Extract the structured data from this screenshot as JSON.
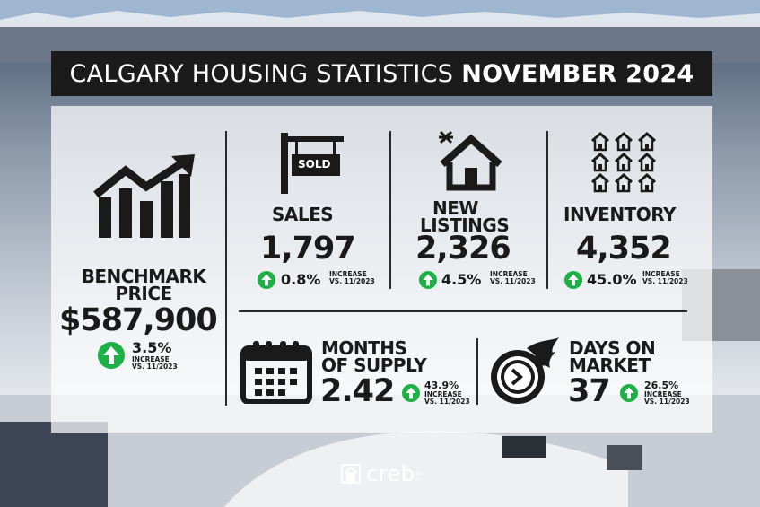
{
  "title": {
    "light": "CALGARY HOUSING STATISTICS",
    "bold": "NOVEMBER 2024"
  },
  "benchmark": {
    "heading_line1": "BENCHMARK",
    "heading_line2": "PRICE",
    "value": "$587,900",
    "change": "3.5%",
    "change_label": "INCREASE",
    "period": "VS. 11/2023"
  },
  "sales": {
    "sign_text": "SOLD",
    "heading": "SALES",
    "value": "1,797",
    "change": "0.8%",
    "change_label": "INCREASE",
    "period": "VS. 11/2023"
  },
  "new_listings": {
    "heading_line1": "NEW",
    "heading_line2": "LISTINGS",
    "value": "2,326",
    "change": "4.5%",
    "change_label": "INCREASE",
    "period": "VS. 11/2023"
  },
  "inventory": {
    "heading": "INVENTORY",
    "value": "4,352",
    "change": "45.0%",
    "change_label": "INCREASE",
    "period": "VS. 11/2023"
  },
  "months_supply": {
    "heading_line1": "MONTHS",
    "heading_line2": "OF SUPPLY",
    "value": "2.42",
    "change": "43.9%",
    "change_label": "INCREASE",
    "period": "VS. 11/2023"
  },
  "days_on_market": {
    "heading_line1": "DAYS ON",
    "heading_line2": "MARKET",
    "value": "37",
    "change": "26.5%",
    "change_label": "INCREASE",
    "period": "VS. 11/2023"
  },
  "footer": {
    "brand": "creb",
    "mark": "®"
  },
  "colors": {
    "accent_green": "#1db046",
    "dark": "#1b1b1b"
  },
  "icons": [
    "growth-chart-icon",
    "sold-sign-icon",
    "house-icon",
    "houses-grid-icon",
    "calendar-icon",
    "fast-clock-icon",
    "up-arrow-icon",
    "creb-logo-icon"
  ]
}
